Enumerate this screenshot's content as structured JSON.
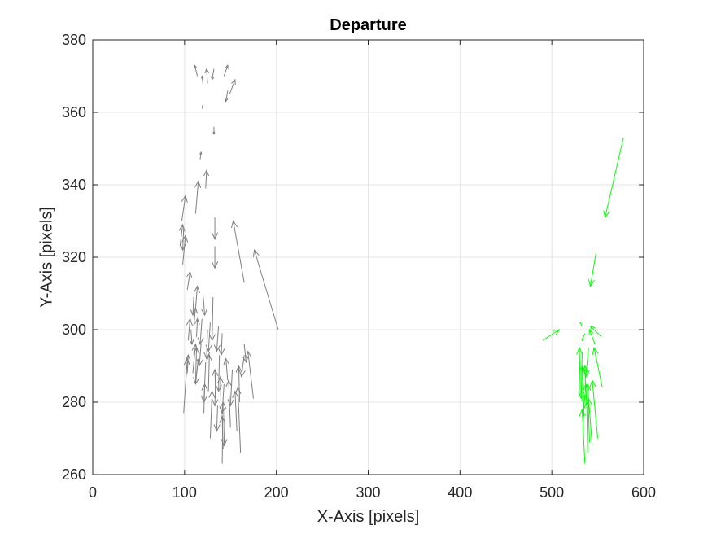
{
  "chart_data": {
    "type": "quiver",
    "title": "Departure",
    "xlabel": "X-Axis [pixels]",
    "ylabel": "Y-Axis [pixels]",
    "xlim": [
      0,
      600
    ],
    "ylim": [
      260,
      380
    ],
    "xticks": [
      0,
      100,
      200,
      300,
      400,
      500,
      600
    ],
    "yticks": [
      260,
      280,
      300,
      320,
      340,
      360,
      380
    ],
    "grid": true,
    "series": [
      {
        "color": "#808080",
        "arrows": [
          [
            114,
            370,
            111,
            373
          ],
          [
            125,
            368,
            124,
            372
          ],
          [
            132,
            372,
            130,
            369
          ],
          [
            143,
            370,
            147,
            373
          ],
          [
            120,
            368,
            119,
            370
          ],
          [
            147,
            366,
            145,
            363
          ],
          [
            149,
            365,
            155,
            369
          ],
          [
            119,
            361,
            120,
            362
          ],
          [
            132,
            356,
            132,
            354
          ],
          [
            117,
            347,
            118,
            349
          ],
          [
            123,
            339,
            124,
            344
          ],
          [
            112,
            332,
            115,
            341
          ],
          [
            97,
            330,
            101,
            337
          ],
          [
            133,
            331,
            133,
            325
          ],
          [
            133,
            323,
            133,
            317
          ],
          [
            99,
            328,
            98,
            322
          ],
          [
            95,
            323,
            98,
            329
          ],
          [
            98,
            318,
            101,
            326
          ],
          [
            165,
            313,
            153,
            330
          ],
          [
            202,
            300,
            176,
            322
          ],
          [
            103,
            311,
            106,
            316
          ],
          [
            110,
            309,
            109,
            304
          ],
          [
            112,
            306,
            114,
            312
          ],
          [
            119,
            303,
            117,
            296
          ],
          [
            110,
            301,
            112,
            306
          ],
          [
            104,
            297,
            106,
            303
          ],
          [
            107,
            300,
            108,
            296
          ],
          [
            120,
            310,
            122,
            304
          ],
          [
            131,
            309,
            130,
            297
          ],
          [
            113,
            298,
            114,
            303
          ],
          [
            125,
            300,
            124,
            292
          ],
          [
            128,
            302,
            126,
            294
          ],
          [
            137,
            301,
            135,
            294
          ],
          [
            141,
            299,
            140,
            293
          ],
          [
            118,
            296,
            116,
            290
          ],
          [
            115,
            292,
            112,
            285
          ],
          [
            103,
            288,
            104,
            293
          ],
          [
            99,
            277,
            103,
            292
          ],
          [
            109,
            288,
            112,
            296
          ],
          [
            123,
            291,
            121,
            280
          ],
          [
            126,
            283,
            127,
            293
          ],
          [
            134,
            288,
            133,
            279
          ],
          [
            138,
            293,
            137,
            283
          ],
          [
            147,
            286,
            145,
            292
          ],
          [
            152,
            289,
            150,
            279
          ],
          [
            143,
            285,
            141,
            277
          ],
          [
            136,
            279,
            135,
            272
          ],
          [
            140,
            275,
            139,
            287
          ],
          [
            144,
            279,
            143,
            268
          ],
          [
            150,
            273,
            148,
            286
          ],
          [
            157,
            272,
            155,
            283
          ],
          [
            160,
            280,
            159,
            290
          ],
          [
            165,
            293,
            162,
            287
          ],
          [
            175,
            281,
            169,
            294
          ],
          [
            165,
            296,
            167,
            291
          ],
          [
            121,
            277,
            122,
            285
          ],
          [
            128,
            270,
            130,
            283
          ],
          [
            141,
            263,
            142,
            280
          ],
          [
            142,
            267,
            141,
            276
          ],
          [
            134,
            281,
            133,
            289
          ],
          [
            161,
            266,
            158,
            284
          ],
          [
            112,
            285,
            113,
            295
          ]
        ]
      },
      {
        "color": "#00ff00",
        "arrows": [
          [
            578,
            353,
            558,
            331
          ],
          [
            548,
            321,
            542,
            312
          ],
          [
            490,
            297,
            508,
            300
          ],
          [
            554,
            298,
            542,
            301
          ],
          [
            533,
            301,
            531,
            302
          ],
          [
            536,
            299,
            533,
            297
          ],
          [
            547,
            296,
            541,
            300
          ],
          [
            533,
            294,
            532,
            281
          ],
          [
            540,
            295,
            537,
            287
          ],
          [
            555,
            284,
            546,
            295
          ],
          [
            531,
            282,
            530,
            295
          ],
          [
            537,
            282,
            536,
            290
          ],
          [
            535,
            276,
            533,
            290
          ],
          [
            538,
            279,
            537,
            285
          ],
          [
            536,
            263,
            533,
            278
          ],
          [
            539,
            266,
            538,
            280
          ],
          [
            541,
            269,
            539,
            285
          ],
          [
            544,
            268,
            540,
            281
          ],
          [
            550,
            270,
            544,
            286
          ],
          [
            534,
            275,
            536,
            282
          ]
        ]
      }
    ]
  }
}
